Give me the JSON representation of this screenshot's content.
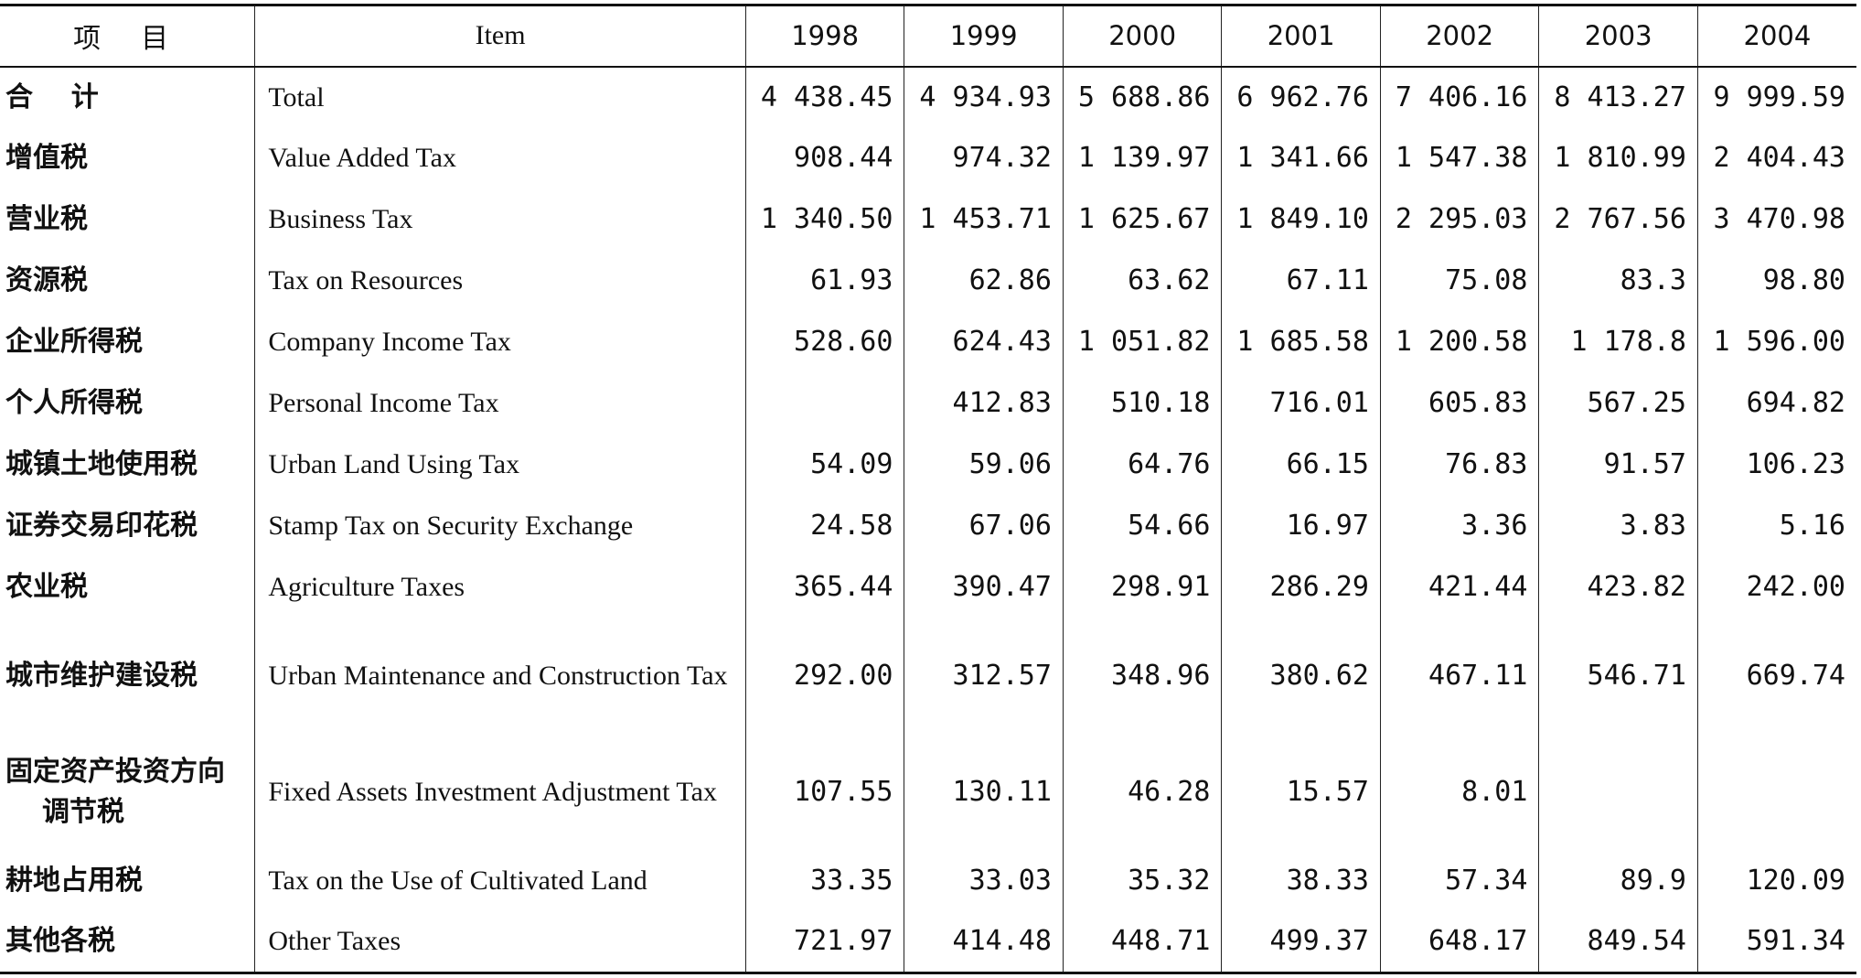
{
  "header": {
    "cn_label": "项目",
    "en_label": "Item",
    "years": [
      "1998",
      "1999",
      "2000",
      "2001",
      "2002",
      "2003",
      "2004"
    ]
  },
  "rows": [
    {
      "cn": "合    计",
      "cn2": "",
      "en": "Total",
      "values": [
        "4 438.45",
        "4 934.93",
        "5 688.86",
        "6 962.76",
        "7 406.16",
        "8 413.27",
        "9 999.59"
      ]
    },
    {
      "cn": "增值税",
      "cn2": "",
      "en": "Value Added Tax",
      "values": [
        "908.44",
        "974.32",
        "1 139.97",
        "1 341.66",
        "1 547.38",
        "1 810.99",
        "2 404.43"
      ]
    },
    {
      "cn": "营业税",
      "cn2": "",
      "en": "Business Tax",
      "values": [
        "1 340.50",
        "1 453.71",
        "1 625.67",
        "1 849.10",
        "2 295.03",
        "2 767.56",
        "3 470.98"
      ]
    },
    {
      "cn": "资源税",
      "cn2": "",
      "en": "Tax on Resources",
      "values": [
        "61.93",
        "62.86",
        "63.62",
        "67.11",
        "75.08",
        "83.3",
        "98.80"
      ]
    },
    {
      "cn": "企业所得税",
      "cn2": "",
      "en": "Company Income Tax",
      "values": [
        "528.60",
        "624.43",
        "1 051.82",
        "1 685.58",
        "1 200.58",
        "1 178.8",
        "1 596.00"
      ]
    },
    {
      "cn": "个人所得税",
      "cn2": "",
      "en": "Personal Income Tax",
      "values": [
        "",
        "412.83",
        "510.18",
        "716.01",
        "605.83",
        "567.25",
        "694.82"
      ]
    },
    {
      "cn": "城镇土地使用税",
      "cn2": "",
      "en": "Urban Land Using Tax",
      "values": [
        "54.09",
        "59.06",
        "64.76",
        "66.15",
        "76.83",
        "91.57",
        "106.23"
      ]
    },
    {
      "cn": "证券交易印花税",
      "cn2": "",
      "en": "Stamp Tax on Security Exchange",
      "values": [
        "24.58",
        "67.06",
        "54.66",
        "16.97",
        "3.36",
        "3.83",
        "5.16"
      ]
    },
    {
      "cn": "农业税",
      "cn2": "",
      "en": "Agriculture Taxes",
      "values": [
        "365.44",
        "390.47",
        "298.91",
        "286.29",
        "421.44",
        "423.82",
        "242.00"
      ]
    },
    {
      "cn": "城市维护建设税",
      "cn2": "",
      "en": "Urban Maintenance and Construction Tax",
      "values": [
        "292.00",
        "312.57",
        "348.96",
        "380.62",
        "467.11",
        "546.71",
        "669.74"
      ]
    },
    {
      "cn": "固定资产投资方向",
      "cn2": "调节税",
      "en": "Fixed Assets Investment Adjustment Tax",
      "values": [
        "107.55",
        "130.11",
        "46.28",
        "15.57",
        "8.01",
        "",
        ""
      ]
    },
    {
      "cn": "耕地占用税",
      "cn2": "",
      "en": "Tax on the Use of Cultivated Land",
      "values": [
        "33.35",
        "33.03",
        "35.32",
        "38.33",
        "57.34",
        "89.9",
        "120.09"
      ]
    },
    {
      "cn": "其他各税",
      "cn2": "",
      "en": "Other Taxes",
      "values": [
        "721.97",
        "414.48",
        "448.71",
        "499.37",
        "648.17",
        "849.54",
        "591.34"
      ]
    }
  ]
}
